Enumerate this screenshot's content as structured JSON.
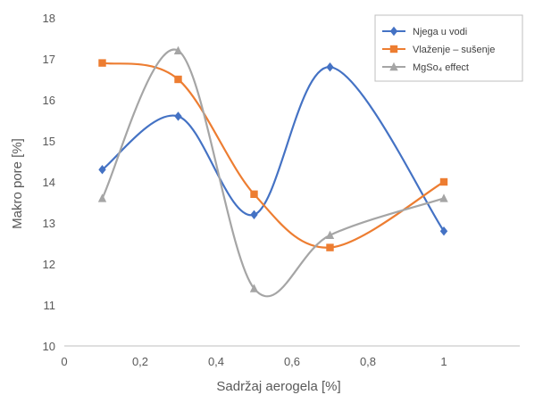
{
  "chart_data": {
    "type": "line",
    "smooth": true,
    "xlabel": "Sadržaj aerogela [%]",
    "ylabel": "Makro pore [%]",
    "xlim": [
      0,
      1.2
    ],
    "ylim": [
      10,
      18
    ],
    "xticks": [
      {
        "value": 0,
        "label": "0"
      },
      {
        "value": 0.2,
        "label": "0,2"
      },
      {
        "value": 0.4,
        "label": "0,4"
      },
      {
        "value": 0.6,
        "label": "0,6"
      },
      {
        "value": 0.8,
        "label": "0,8"
      },
      {
        "value": 1,
        "label": "1"
      }
    ],
    "yticks": [
      {
        "value": 10,
        "label": "10"
      },
      {
        "value": 11,
        "label": "11"
      },
      {
        "value": 12,
        "label": "12"
      },
      {
        "value": 13,
        "label": "13"
      },
      {
        "value": 14,
        "label": "14"
      },
      {
        "value": 15,
        "label": "15"
      },
      {
        "value": 16,
        "label": "16"
      },
      {
        "value": 17,
        "label": "17"
      },
      {
        "value": 18,
        "label": "18"
      }
    ],
    "grid": false,
    "legend_position": "top-right",
    "x": [
      0.1,
      0.3,
      0.5,
      0.7,
      1.0
    ],
    "series": [
      {
        "name": "Njega u vodi",
        "color": "#4472c4",
        "marker": "diamond",
        "values": [
          14.3,
          15.6,
          13.2,
          16.8,
          12.8
        ]
      },
      {
        "name": "Vlaženje – sušenje",
        "color": "#ed7d31",
        "marker": "square",
        "values": [
          16.9,
          16.5,
          13.7,
          12.4,
          14.0
        ]
      },
      {
        "name": "MgSo₄ effect",
        "color": "#a5a5a5",
        "marker": "triangle",
        "values": [
          13.6,
          17.2,
          11.4,
          12.7,
          13.6
        ]
      }
    ]
  }
}
